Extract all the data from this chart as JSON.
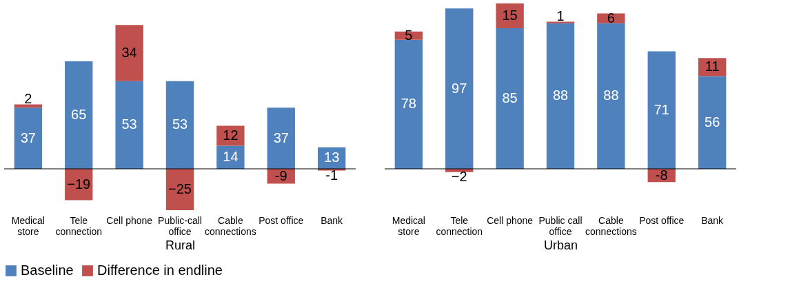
{
  "chart_data": [
    {
      "type": "bar",
      "stacked": true,
      "xlabel": "Rural",
      "legend": "bottom",
      "categories": [
        "Medical store",
        "Tele connection",
        "Cell phone",
        "Public-call office",
        "Cable connections",
        "Post office",
        "Bank"
      ],
      "series": [
        {
          "name": "Baseline",
          "color": "#4f81bd",
          "values": [
            37,
            65,
            53,
            53,
            14,
            37,
            13
          ],
          "value_labels": [
            "37",
            "65",
            "53",
            "53",
            "14",
            "37",
            "13"
          ]
        },
        {
          "name": "Difference in endline",
          "color": "#c0504d",
          "values": [
            2,
            -19,
            34,
            -25,
            12,
            -9,
            -1
          ],
          "value_labels": [
            "2",
            "−19",
            "34",
            "−25",
            "12",
            "-9",
            "-1"
          ]
        }
      ]
    },
    {
      "type": "bar",
      "stacked": true,
      "xlabel": "Urban",
      "legend": "bottom",
      "categories": [
        "Medical store",
        "Tele connection",
        "Cell phone",
        "Public call office",
        "Cable connections",
        "Post office",
        "Bank"
      ],
      "series": [
        {
          "name": "Baseline",
          "color": "#4f81bd",
          "values": [
            78,
            97,
            85,
            88,
            88,
            71,
            56
          ],
          "value_labels": [
            "78",
            "97",
            "85",
            "88",
            "88",
            "71",
            "56"
          ]
        },
        {
          "name": "Difference in endline",
          "color": "#c0504d",
          "values": [
            5,
            -2,
            15,
            1,
            6,
            -8,
            11
          ],
          "value_labels": [
            "5",
            "−2",
            "15",
            "1",
            "6",
            "-8",
            "11"
          ]
        }
      ]
    }
  ]
}
